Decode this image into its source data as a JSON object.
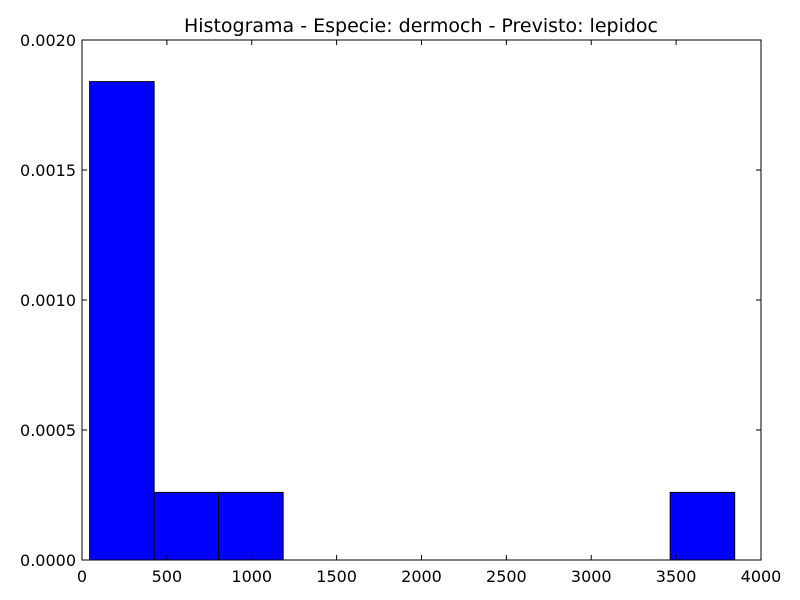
{
  "chart_data": {
    "type": "bar",
    "title": "Histograma - Especie: dermoch - Previsto: lepidoc",
    "xlabel": "",
    "ylabel": "",
    "xlim": [
      0,
      4000
    ],
    "ylim": [
      0,
      0.002
    ],
    "xticks": [
      0,
      500,
      1000,
      1500,
      2000,
      2500,
      3000,
      3500,
      4000
    ],
    "xtick_labels": [
      "0",
      "500",
      "1000",
      "1500",
      "2000",
      "2500",
      "3000",
      "3500",
      "4000"
    ],
    "yticks": [
      0,
      0.0005,
      0.001,
      0.0015,
      0.002
    ],
    "ytick_labels": [
      "0.0000",
      "0.0005",
      "0.0010",
      "0.0015",
      "0.0020"
    ],
    "grid": false,
    "legend": "none",
    "bar_color": "#0000ff",
    "bins": [
      {
        "x0": 45,
        "x1": 425,
        "value": 0.00184
      },
      {
        "x0": 425,
        "x1": 805,
        "value": 0.00026
      },
      {
        "x0": 805,
        "x1": 1185,
        "value": 0.00026
      },
      {
        "x0": 1185,
        "x1": 1565,
        "value": 0
      },
      {
        "x0": 1565,
        "x1": 1945,
        "value": 0
      },
      {
        "x0": 1945,
        "x1": 2325,
        "value": 0
      },
      {
        "x0": 2325,
        "x1": 2705,
        "value": 0
      },
      {
        "x0": 2705,
        "x1": 3085,
        "value": 0
      },
      {
        "x0": 3085,
        "x1": 3465,
        "value": 0
      },
      {
        "x0": 3465,
        "x1": 3845,
        "value": 0.00026
      }
    ]
  }
}
